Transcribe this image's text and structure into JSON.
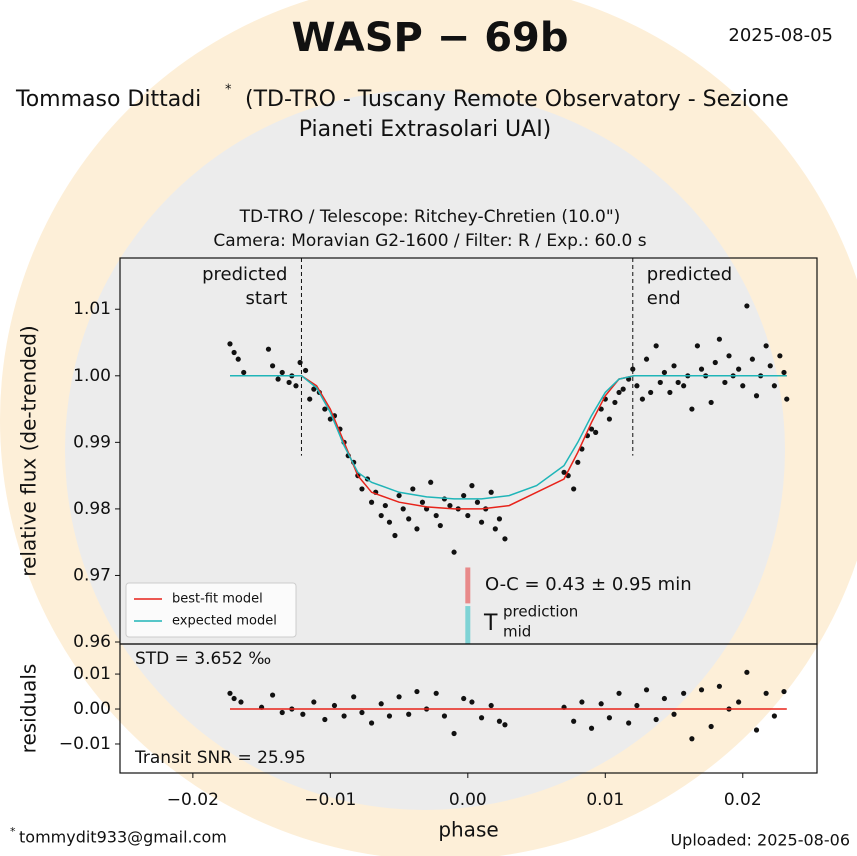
{
  "header": {
    "title": "WASP − 69b",
    "date": "2025-08-05",
    "author": "Tommaso Dittadi",
    "author_mark": "*",
    "affiliation_lines": [
      "(TD-TRO - Tuscany Remote Observatory - Sezione",
      "Pianeti Extrasolari UAI)"
    ]
  },
  "footer": {
    "email_mark": "*",
    "email": "tommydit933@gmail.com",
    "uploaded": "Uploaded: 2025-08-06"
  },
  "chart_data": [
    {
      "type": "scatter",
      "subtitle_lines": [
        "TD-TRO / Telescope: Ritchey-Chretien (10.0\")",
        "Camera: Moravian G2-1600 / Filter: R / Exp.: 60.0 s"
      ],
      "ylabel": "relative flux (de-trended)",
      "xlim": [
        -0.0253,
        0.0254
      ],
      "ylim": [
        0.9597,
        1.0177
      ],
      "yticks": [
        0.96,
        0.97,
        0.98,
        0.99,
        {
          "value": 1.0,
          "label": "1.00"
        },
        1.01
      ],
      "points": {
        "color": "#111111",
        "x": [
          -0.0173,
          -0.017,
          -0.0167,
          -0.0163,
          -0.0145,
          -0.0142,
          -0.0138,
          -0.0135,
          -0.013,
          -0.0128,
          -0.0125,
          -0.0122,
          -0.0118,
          -0.0115,
          -0.0112,
          -0.0108,
          -0.0104,
          -0.01,
          -0.0097,
          -0.0093,
          -0.009,
          -0.0087,
          -0.0083,
          -0.008,
          -0.0077,
          -0.0073,
          -0.007,
          -0.0067,
          -0.0063,
          -0.006,
          -0.0057,
          -0.0053,
          -0.005,
          -0.0047,
          -0.0043,
          -0.004,
          -0.0037,
          -0.0033,
          -0.003,
          -0.0027,
          -0.0023,
          -0.002,
          -0.0017,
          -0.0013,
          -0.001,
          -0.0007,
          -0.0003,
          0.0,
          0.0003,
          0.0007,
          0.001,
          0.0013,
          0.0017,
          0.002,
          0.0023,
          0.0027,
          0.007,
          0.0073,
          0.0077,
          0.008,
          0.0083,
          0.0087,
          0.009,
          0.0093,
          0.0097,
          0.01,
          0.0103,
          0.0107,
          0.011,
          0.0113,
          0.0117,
          0.012,
          0.0123,
          0.0127,
          0.013,
          0.0133,
          0.0137,
          0.014,
          0.0143,
          0.0147,
          0.015,
          0.0153,
          0.0157,
          0.016,
          0.0163,
          0.0167,
          0.017,
          0.0173,
          0.0177,
          0.018,
          0.0183,
          0.0187,
          0.019,
          0.0193,
          0.0197,
          0.02,
          0.0203,
          0.0207,
          0.021,
          0.0213,
          0.0217,
          0.022,
          0.0223,
          0.0227,
          0.023,
          0.0232
        ],
        "values": [
          1.0048,
          1.0035,
          1.0025,
          1.0005,
          1.004,
          1.0015,
          0.9995,
          1.0005,
          0.999,
          1.0,
          0.9985,
          1.002,
          1.0008,
          0.9965,
          0.998,
          0.9975,
          0.995,
          0.9935,
          0.994,
          0.992,
          0.99,
          0.988,
          0.987,
          0.985,
          0.983,
          0.9845,
          0.981,
          0.9825,
          0.979,
          0.9805,
          0.978,
          0.976,
          0.982,
          0.98,
          0.9785,
          0.983,
          0.977,
          0.981,
          0.98,
          0.984,
          0.979,
          0.9775,
          0.9815,
          0.9805,
          0.9735,
          0.98,
          0.982,
          0.979,
          0.9835,
          0.981,
          0.978,
          0.98,
          0.9825,
          0.977,
          0.9785,
          0.9755,
          0.9855,
          0.985,
          0.983,
          0.987,
          0.989,
          0.991,
          0.992,
          0.9915,
          0.995,
          0.9965,
          0.9935,
          0.996,
          0.9975,
          0.998,
          0.9995,
          1.001,
          0.9985,
          0.9965,
          1.0025,
          0.9975,
          1.0045,
          0.999,
          1.0005,
          0.9975,
          1.0015,
          0.999,
          0.9985,
          1.0,
          0.995,
          1.0045,
          1.001,
          1.0,
          0.996,
          1.002,
          1.0055,
          0.999,
          1.003,
          1.0,
          1.001,
          0.9985,
          1.0105,
          1.0025,
          0.997,
          1.0,
          1.0045,
          1.0015,
          0.9985,
          1.003,
          1.0005,
          0.9965
        ]
      },
      "lines": [
        {
          "name": "best-fit model",
          "color": "#e8231a",
          "x": [
            -0.0173,
            -0.0121,
            -0.011,
            -0.01,
            -0.009,
            -0.008,
            -0.007,
            -0.005,
            -0.003,
            -0.001,
            0.001,
            0.003,
            0.005,
            0.007,
            0.008,
            0.009,
            0.01,
            0.011,
            0.0121,
            0.0232
          ],
          "values": [
            1.0,
            1.0,
            0.9985,
            0.995,
            0.99,
            0.985,
            0.9825,
            0.981,
            0.9803,
            0.98,
            0.98,
            0.9805,
            0.9825,
            0.9845,
            0.9885,
            0.993,
            0.997,
            0.9995,
            1.0,
            1.0
          ]
        },
        {
          "name": "expected model",
          "color": "#1fb5b8",
          "x": [
            -0.0173,
            -0.0121,
            -0.011,
            -0.01,
            -0.009,
            -0.008,
            -0.007,
            -0.005,
            -0.003,
            -0.001,
            0.001,
            0.003,
            0.005,
            0.007,
            0.008,
            0.009,
            0.01,
            0.011,
            0.0121,
            0.0232
          ],
          "values": [
            1.0,
            1.0,
            0.9982,
            0.9945,
            0.9895,
            0.9855,
            0.984,
            0.9825,
            0.9818,
            0.9815,
            0.9815,
            0.982,
            0.9835,
            0.9865,
            0.99,
            0.994,
            0.9975,
            0.9995,
            1.0,
            1.0
          ]
        }
      ],
      "legend": "lower left",
      "vlines": [
        {
          "x": -0.0121,
          "label_lines": [
            "predicted",
            "start"
          ]
        },
        {
          "x": 0.012,
          "label_lines": [
            "predicted",
            "end"
          ]
        }
      ],
      "oc_bars": [
        {
          "x": 0.0,
          "y": [
            0.9658,
            0.9712
          ],
          "color": "#e88a8a"
        },
        {
          "x": 0.0,
          "y": [
            0.9597,
            0.9654
          ],
          "color": "#7fd3d5"
        }
      ],
      "oc_text": "O-C = 0.43 ± 0.95 min",
      "tmid": {
        "symbol": "T",
        "sup": "prediction",
        "sub": "mid"
      }
    },
    {
      "type": "scatter",
      "ylabel": "residuals",
      "xlabel": "phase",
      "xlim": [
        -0.0253,
        0.0254
      ],
      "ylim": [
        -0.0183,
        0.0186
      ],
      "xticks": [
        {
          "value": -0.02,
          "label": "−0.02"
        },
        {
          "value": -0.01,
          "label": "−0.01"
        },
        {
          "value": 0.0,
          "label": "0.00"
        },
        0.01,
        0.02
      ],
      "yticks": [
        {
          "value": -0.01,
          "label": "−0.01"
        },
        {
          "value": 0.0,
          "label": "0.00"
        },
        0.01
      ],
      "points": {
        "color": "#111111",
        "x": [
          -0.0173,
          -0.017,
          -0.0165,
          -0.015,
          -0.0142,
          -0.0135,
          -0.0128,
          -0.012,
          -0.0112,
          -0.0104,
          -0.0097,
          -0.009,
          -0.0083,
          -0.0077,
          -0.007,
          -0.0063,
          -0.0057,
          -0.005,
          -0.0043,
          -0.0037,
          -0.003,
          -0.0023,
          -0.0017,
          -0.001,
          -0.0003,
          0.0003,
          0.001,
          0.0017,
          0.0023,
          0.0027,
          0.007,
          0.0077,
          0.0083,
          0.009,
          0.0097,
          0.0103,
          0.011,
          0.0117,
          0.0123,
          0.013,
          0.0137,
          0.0143,
          0.015,
          0.0157,
          0.0163,
          0.017,
          0.0177,
          0.0183,
          0.019,
          0.0197,
          0.0203,
          0.021,
          0.0217,
          0.0223,
          0.023
        ],
        "values": [
          0.0045,
          0.003,
          0.002,
          0.0005,
          0.004,
          -0.001,
          0.0,
          -0.0015,
          0.002,
          -0.003,
          0.001,
          -0.002,
          0.0035,
          -0.001,
          -0.004,
          0.0015,
          -0.002,
          0.0035,
          -0.0015,
          0.005,
          0.0,
          0.0045,
          -0.002,
          -0.007,
          0.003,
          0.002,
          -0.0025,
          0.001,
          -0.0035,
          -0.0045,
          0.0005,
          -0.0035,
          0.002,
          -0.0055,
          0.0015,
          -0.0025,
          0.0045,
          -0.004,
          0.001,
          0.0055,
          -0.003,
          0.003,
          -0.0015,
          0.0045,
          -0.0085,
          0.0055,
          -0.005,
          0.0065,
          0.0,
          0.002,
          0.0105,
          -0.006,
          0.0045,
          -0.002,
          0.005
        ]
      },
      "lines": [
        {
          "color": "#e8231a",
          "x": [
            -0.0173,
            0.0232
          ],
          "values": [
            0.0,
            0.0
          ]
        }
      ],
      "std_text": "STD = 3.652 ‰",
      "snr_text": "Transit SNR = 25.95"
    }
  ]
}
